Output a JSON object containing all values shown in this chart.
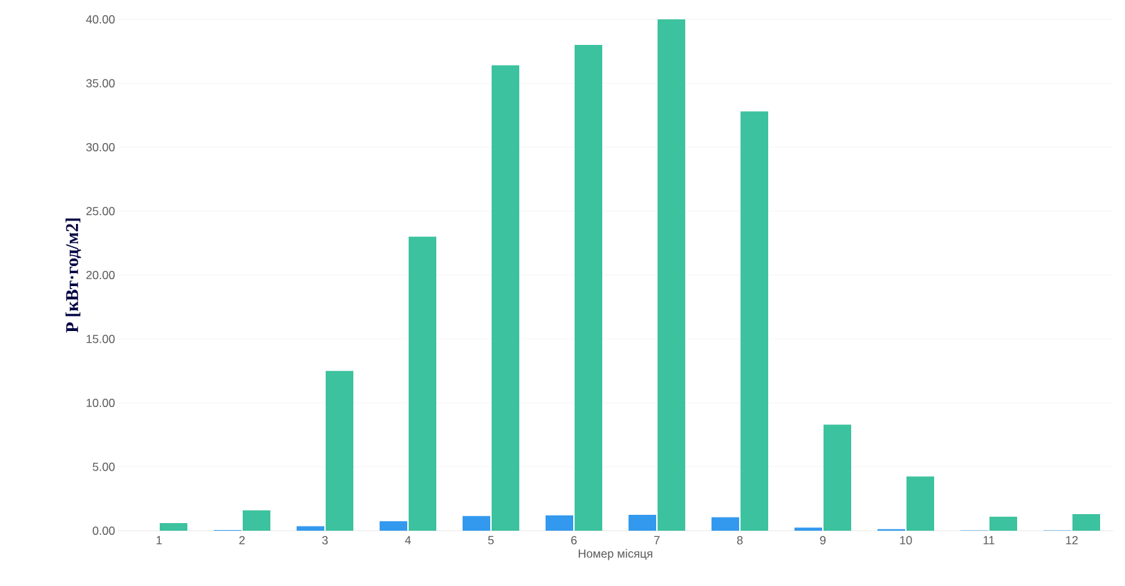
{
  "chart_data": {
    "type": "bar",
    "xlabel": "Номер місяця",
    "ylabel": "P [кВт·год/м2]",
    "categories": [
      "1",
      "2",
      "3",
      "4",
      "5",
      "6",
      "7",
      "8",
      "9",
      "10",
      "11",
      "12"
    ],
    "series": [
      {
        "color": "#3399ee",
        "values": [
          null,
          0.05,
          0.35,
          0.75,
          1.15,
          1.2,
          1.25,
          1.05,
          0.25,
          0.12,
          0.03,
          0.03
        ]
      },
      {
        "color": "#3cc29e",
        "values": [
          0.6,
          1.6,
          12.5,
          23.0,
          36.4,
          38.0,
          40.0,
          32.8,
          8.3,
          4.25,
          1.1,
          1.3
        ]
      }
    ],
    "ylim": [
      0,
      40
    ],
    "yticks": [
      {
        "value": 0,
        "label": "0.00"
      },
      {
        "value": 5,
        "label": "5.00"
      },
      {
        "value": 10,
        "label": "10.00"
      },
      {
        "value": 15,
        "label": "15.00"
      },
      {
        "value": 20,
        "label": "20.00"
      },
      {
        "value": 25,
        "label": "25.00"
      },
      {
        "value": 30,
        "label": "30.00"
      },
      {
        "value": 35,
        "label": "35.00"
      },
      {
        "value": 40,
        "label": "40.00"
      }
    ],
    "grid": "y"
  }
}
